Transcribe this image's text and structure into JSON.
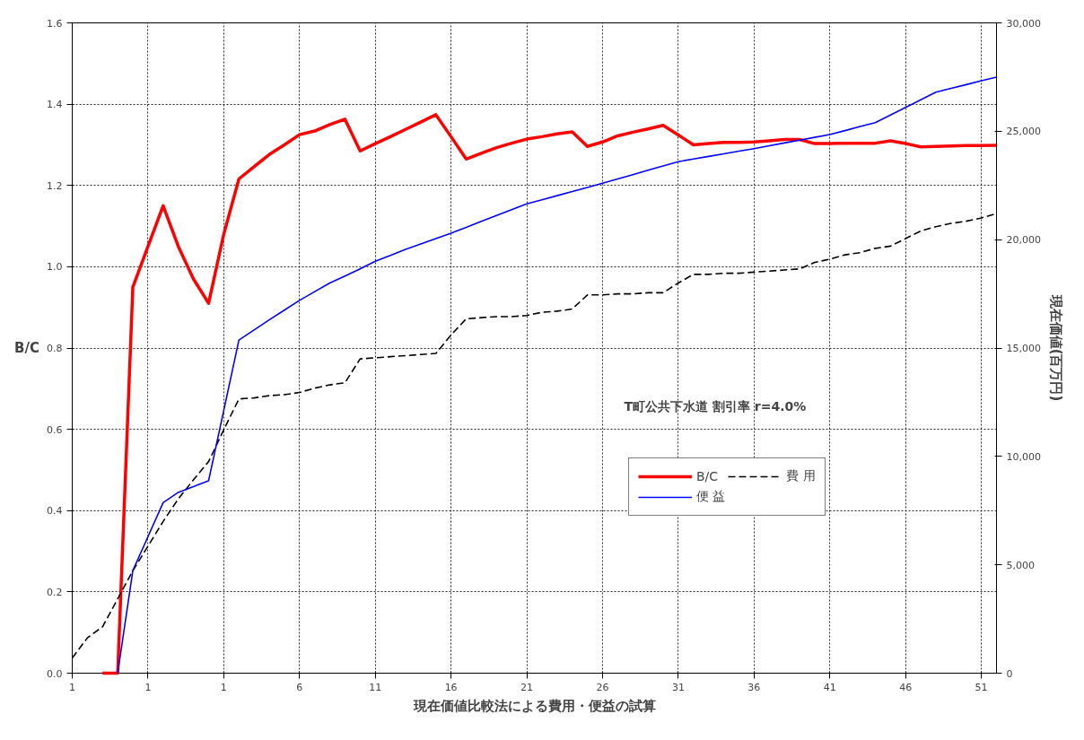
{
  "chart_data": {
    "type": "line",
    "xlabel": "現在価値比較法による費用・便益の試算",
    "ylabel": "B/C",
    "y2label": "現在価値(百万円)",
    "annotations": [
      "T町公共下水道  割引率  r=4.0%"
    ],
    "categories": [
      "1",
      null,
      null,
      null,
      null,
      "1",
      null,
      null,
      null,
      null,
      "1",
      null,
      null,
      null,
      null,
      "6",
      null,
      null,
      null,
      null,
      "11",
      null,
      null,
      null,
      null,
      "16",
      null,
      null,
      null,
      null,
      "21",
      null,
      null,
      null,
      null,
      "26",
      null,
      null,
      null,
      null,
      "31",
      null,
      null,
      null,
      null,
      "36",
      null,
      null,
      null,
      null,
      "41",
      null,
      null,
      null,
      null,
      "46",
      null,
      null,
      null,
      null,
      "51",
      null
    ],
    "ylim": [
      0,
      1.6
    ],
    "yticks": [
      {
        "value": 0,
        "label": "0.0"
      },
      0.2,
      0.4,
      0.6,
      0.8,
      {
        "value": 1,
        "label": "1.0"
      },
      1.2,
      1.4,
      1.6
    ],
    "y2lim": [
      0,
      30000
    ],
    "y2ticks": [
      0,
      {
        "value": 5000,
        "label": "5,000"
      },
      {
        "value": 10000,
        "label": "10,000"
      },
      {
        "value": 15000,
        "label": "15,000"
      },
      {
        "value": 20000,
        "label": "20,000"
      },
      {
        "value": 25000,
        "label": "25,000"
      },
      {
        "value": 30000,
        "label": "30,000"
      }
    ],
    "grid": true,
    "legend": "right",
    "marker": "none",
    "series": [
      {
        "name": "B/C",
        "color": "#ff0000",
        "line_style": "solid",
        "values": [
          null,
          null,
          0,
          0,
          0.95,
          1.05,
          1.15,
          1.05,
          0.97,
          0.91,
          1.08,
          1.216,
          1.246,
          1.276,
          1.3,
          1.325,
          1.334,
          1.35,
          1.363,
          1.285,
          1.303,
          1.32,
          1.338,
          1.356,
          1.374,
          1.32,
          1.265,
          1.279,
          1.293,
          1.304,
          1.314,
          1.32,
          1.327,
          1.332,
          1.296,
          1.307,
          1.322,
          1.331,
          1.339,
          1.348,
          1.324,
          1.3,
          1.303,
          1.306,
          1.306,
          1.307,
          1.31,
          1.313,
          1.313,
          1.303,
          1.303,
          1.304,
          1.304,
          1.304,
          1.31,
          1.303,
          1.295,
          1.296,
          1.297,
          1.298,
          1.298,
          1.299
        ]
      },
      {
        "name": "費 用",
        "color": "#000000",
        "line_style": "dashed",
        "axis": "y2",
        "values": [
          700,
          1630,
          2140,
          3430,
          4730,
          5860,
          7000,
          8040,
          8920,
          9760,
          11230,
          12650,
          12700,
          12800,
          12850,
          12950,
          13150,
          13300,
          13400,
          14500,
          14550,
          14600,
          14650,
          14700,
          14750,
          15600,
          16350,
          16400,
          16450,
          16450,
          16500,
          16650,
          16700,
          16800,
          17450,
          17450,
          17500,
          17500,
          17550,
          17550,
          18000,
          18400,
          18400,
          18450,
          18450,
          18500,
          18550,
          18600,
          18650,
          18950,
          19100,
          19300,
          19400,
          19600,
          19700,
          20050,
          20400,
          20600,
          20750,
          20850,
          21000,
          21200
        ]
      },
      {
        "name": "便 益",
        "color": "#0000ff",
        "line_style": "solid",
        "axis": "y2",
        "values": [
          null,
          null,
          null,
          0,
          4730,
          6300,
          7870,
          8340,
          8610,
          8880,
          12120,
          15370,
          15830,
          16300,
          16750,
          17200,
          17600,
          18000,
          18320,
          18650,
          19000,
          19270,
          19550,
          19800,
          20050,
          20300,
          20570,
          20840,
          21110,
          21380,
          21650,
          21840,
          22030,
          22220,
          22410,
          22600,
          22800,
          23000,
          23200,
          23400,
          23600,
          23720,
          23840,
          23960,
          24080,
          24200,
          24330,
          24460,
          24590,
          24720,
          24850,
          25030,
          25220,
          25400,
          25750,
          26100,
          26450,
          26800,
          26980,
          27150,
          27330,
          27500
        ]
      }
    ]
  }
}
